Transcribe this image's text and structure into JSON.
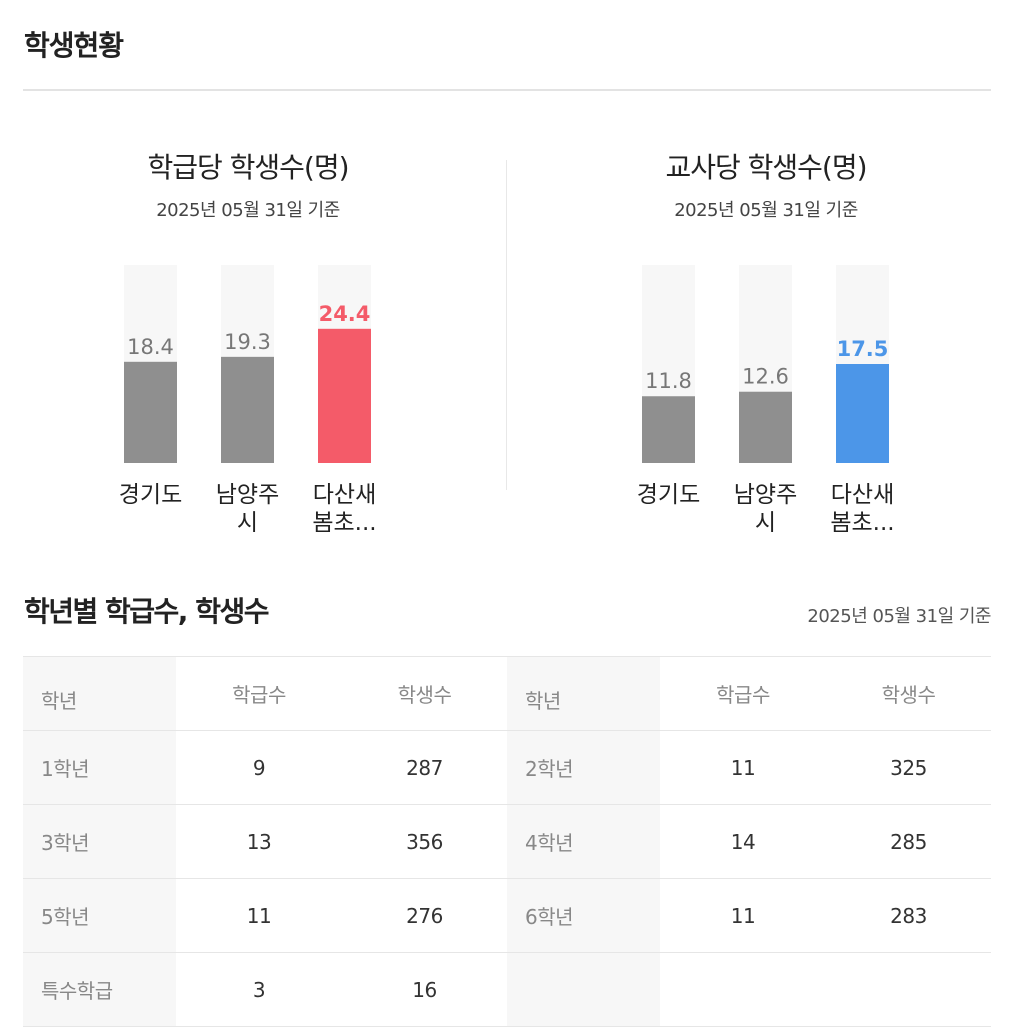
{
  "section": {
    "title": "학생현황"
  },
  "chart_data": [
    {
      "type": "bar",
      "title": "학급당 학생수(명)",
      "subtitle": "2025년 05월 31일 기준",
      "categories": [
        [
          "경기도"
        ],
        [
          "남양주",
          "시"
        ],
        [
          "다산새",
          "봄초..."
        ]
      ],
      "values": [
        18.4,
        19.3,
        24.4
      ],
      "value_labels": [
        "18.4",
        "19.3",
        "24.4"
      ],
      "ylim": [
        0,
        36
      ],
      "colors": [
        "#8f8f8f",
        "#8f8f8f",
        "#f45b69"
      ],
      "label_colors": [
        "#777777",
        "#777777",
        "#f45b69"
      ],
      "track_color": "#f7f7f7"
    },
    {
      "type": "bar",
      "title": "교사당 학생수(명)",
      "subtitle": "2025년 05월 31일 기준",
      "categories": [
        [
          "경기도"
        ],
        [
          "남양주",
          "시"
        ],
        [
          "다산새",
          "봄초..."
        ]
      ],
      "values": [
        11.8,
        12.6,
        17.5
      ],
      "value_labels": [
        "11.8",
        "12.6",
        "17.5"
      ],
      "ylim": [
        0,
        35
      ],
      "colors": [
        "#8f8f8f",
        "#8f8f8f",
        "#4c96e8"
      ],
      "label_colors": [
        "#777777",
        "#777777",
        "#4c96e8"
      ],
      "track_color": "#f7f7f7"
    }
  ],
  "grade_table": {
    "title": "학년별 학급수, 학생수",
    "date": "2025년 05월 31일 기준",
    "headers": {
      "grade": "학년",
      "classes": "학급수",
      "students": "학생수"
    },
    "rows": [
      [
        {
          "grade": "1학년",
          "classes": "9",
          "students": "287"
        },
        {
          "grade": "2학년",
          "classes": "11",
          "students": "325"
        }
      ],
      [
        {
          "grade": "3학년",
          "classes": "13",
          "students": "356"
        },
        {
          "grade": "4학년",
          "classes": "14",
          "students": "285"
        }
      ],
      [
        {
          "grade": "5학년",
          "classes": "11",
          "students": "276"
        },
        {
          "grade": "6학년",
          "classes": "11",
          "students": "283"
        }
      ],
      [
        {
          "grade": "특수학급",
          "classes": "3",
          "students": "16"
        },
        {
          "grade": "",
          "classes": "",
          "students": ""
        }
      ]
    ]
  }
}
